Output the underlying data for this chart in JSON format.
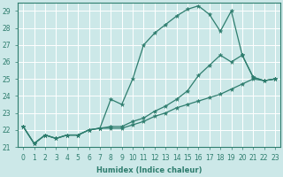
{
  "xlabel": "Humidex (Indice chaleur)",
  "xlim": [
    -0.5,
    23.5
  ],
  "ylim": [
    21,
    29.5
  ],
  "yticks": [
    21,
    22,
    23,
    24,
    25,
    26,
    27,
    28,
    29
  ],
  "xticks": [
    0,
    1,
    2,
    3,
    4,
    5,
    6,
    7,
    8,
    9,
    10,
    11,
    12,
    13,
    14,
    15,
    16,
    17,
    18,
    19,
    20,
    21,
    22,
    23
  ],
  "bg_color": "#cce8e8",
  "grid_color": "#ffffff",
  "line_color": "#2e7d6e",
  "series": [
    {
      "x": [
        0,
        1,
        2,
        3,
        4,
        5,
        6,
        7,
        8,
        9,
        10,
        11,
        12,
        13,
        14,
        15,
        16,
        17,
        18,
        19,
        20,
        21,
        22,
        23
      ],
      "y": [
        22.2,
        21.2,
        21.7,
        21.5,
        21.7,
        21.7,
        22.0,
        22.1,
        23.8,
        23.5,
        25.0,
        27.0,
        27.7,
        28.2,
        28.7,
        29.1,
        29.3,
        28.8,
        27.8,
        29.0,
        26.4,
        25.1,
        24.9,
        25.0
      ]
    },
    {
      "x": [
        0,
        1,
        2,
        3,
        4,
        5,
        6,
        7,
        8,
        9,
        10,
        11,
        12,
        13,
        14,
        15,
        16,
        17,
        18,
        19,
        20,
        21,
        22,
        23
      ],
      "y": [
        22.2,
        21.2,
        21.7,
        21.5,
        21.7,
        21.7,
        22.0,
        22.1,
        22.2,
        22.2,
        22.5,
        22.7,
        23.1,
        23.4,
        23.8,
        24.3,
        25.2,
        25.8,
        26.4,
        26.0,
        26.4,
        25.1,
        24.9,
        25.0
      ]
    },
    {
      "x": [
        0,
        1,
        2,
        3,
        4,
        5,
        6,
        7,
        8,
        9,
        10,
        11,
        12,
        13,
        14,
        15,
        16,
        17,
        18,
        19,
        20,
        21,
        22,
        23
      ],
      "y": [
        22.2,
        21.2,
        21.7,
        21.5,
        21.7,
        21.7,
        22.0,
        22.1,
        22.1,
        22.1,
        22.3,
        22.5,
        22.8,
        23.0,
        23.3,
        23.5,
        23.7,
        23.9,
        24.1,
        24.4,
        24.7,
        25.0,
        24.9,
        25.0
      ]
    }
  ]
}
